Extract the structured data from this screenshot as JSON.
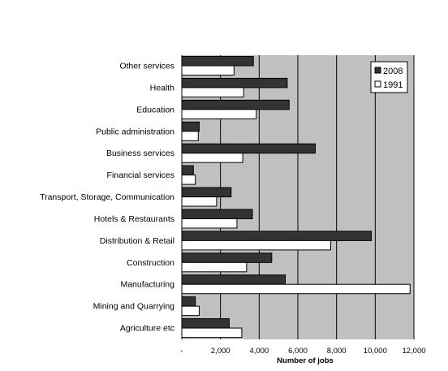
{
  "chart_data": {
    "type": "bar",
    "orientation": "horizontal",
    "categories": [
      "Other services",
      "Health",
      "Education",
      "Public administration",
      "Business services",
      "Financial services",
      "Transport, Storage, Communication",
      "Hotels & Restaurants",
      "Distribution & Retail",
      "Construction",
      "Manufacturing",
      "Mining and Quarrying",
      "Agriculture etc"
    ],
    "series": [
      {
        "name": "2008",
        "color": "#333333",
        "values": [
          3700,
          5450,
          5550,
          900,
          6900,
          600,
          2550,
          3650,
          9800,
          4650,
          5350,
          700,
          2450
        ]
      },
      {
        "name": "1991",
        "color": "#ffffff",
        "values": [
          2700,
          3200,
          3850,
          850,
          3150,
          700,
          1800,
          2850,
          7700,
          3350,
          11800,
          900,
          3100
        ]
      }
    ],
    "xlabel": "Number of jobs",
    "xlim": [
      0,
      12000
    ],
    "xticks": [
      0,
      2000,
      4000,
      6000,
      8000,
      10000,
      12000
    ],
    "xtick_labels": [
      "-",
      "2,000",
      "4,000",
      "6,000",
      "8,000",
      "10,000",
      "12,000"
    ],
    "grid": "vertical",
    "plot_background": "#c0c0c0",
    "legend_position": "top-right"
  }
}
